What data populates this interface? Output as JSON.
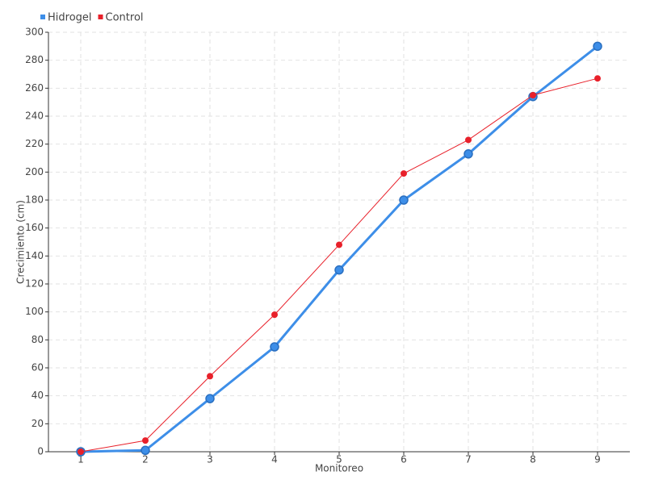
{
  "chart_data": {
    "type": "line",
    "x": [
      1,
      2,
      3,
      4,
      5,
      6,
      7,
      8,
      9
    ],
    "series": [
      {
        "name": "Hidrogel",
        "color": "#3d8ee8",
        "values": [
          0,
          1,
          38,
          75,
          130,
          180,
          213,
          254,
          290
        ]
      },
      {
        "name": "Control",
        "color": "#e8202a",
        "values": [
          0,
          8,
          54,
          98,
          148,
          199,
          223,
          255,
          267
        ]
      }
    ],
    "x_label": "Monitoreo",
    "y_label": "Crecimiento (cm)",
    "xlim": [
      0.5,
      9.5
    ],
    "xticks": [
      1,
      2,
      3,
      4,
      5,
      6,
      7,
      8,
      9
    ],
    "ylim": [
      0,
      300
    ],
    "yticks": [
      0,
      20,
      40,
      60,
      80,
      100,
      120,
      140,
      160,
      180,
      200,
      220,
      240,
      260,
      280,
      300
    ],
    "grid": true,
    "legend": "top-left"
  }
}
